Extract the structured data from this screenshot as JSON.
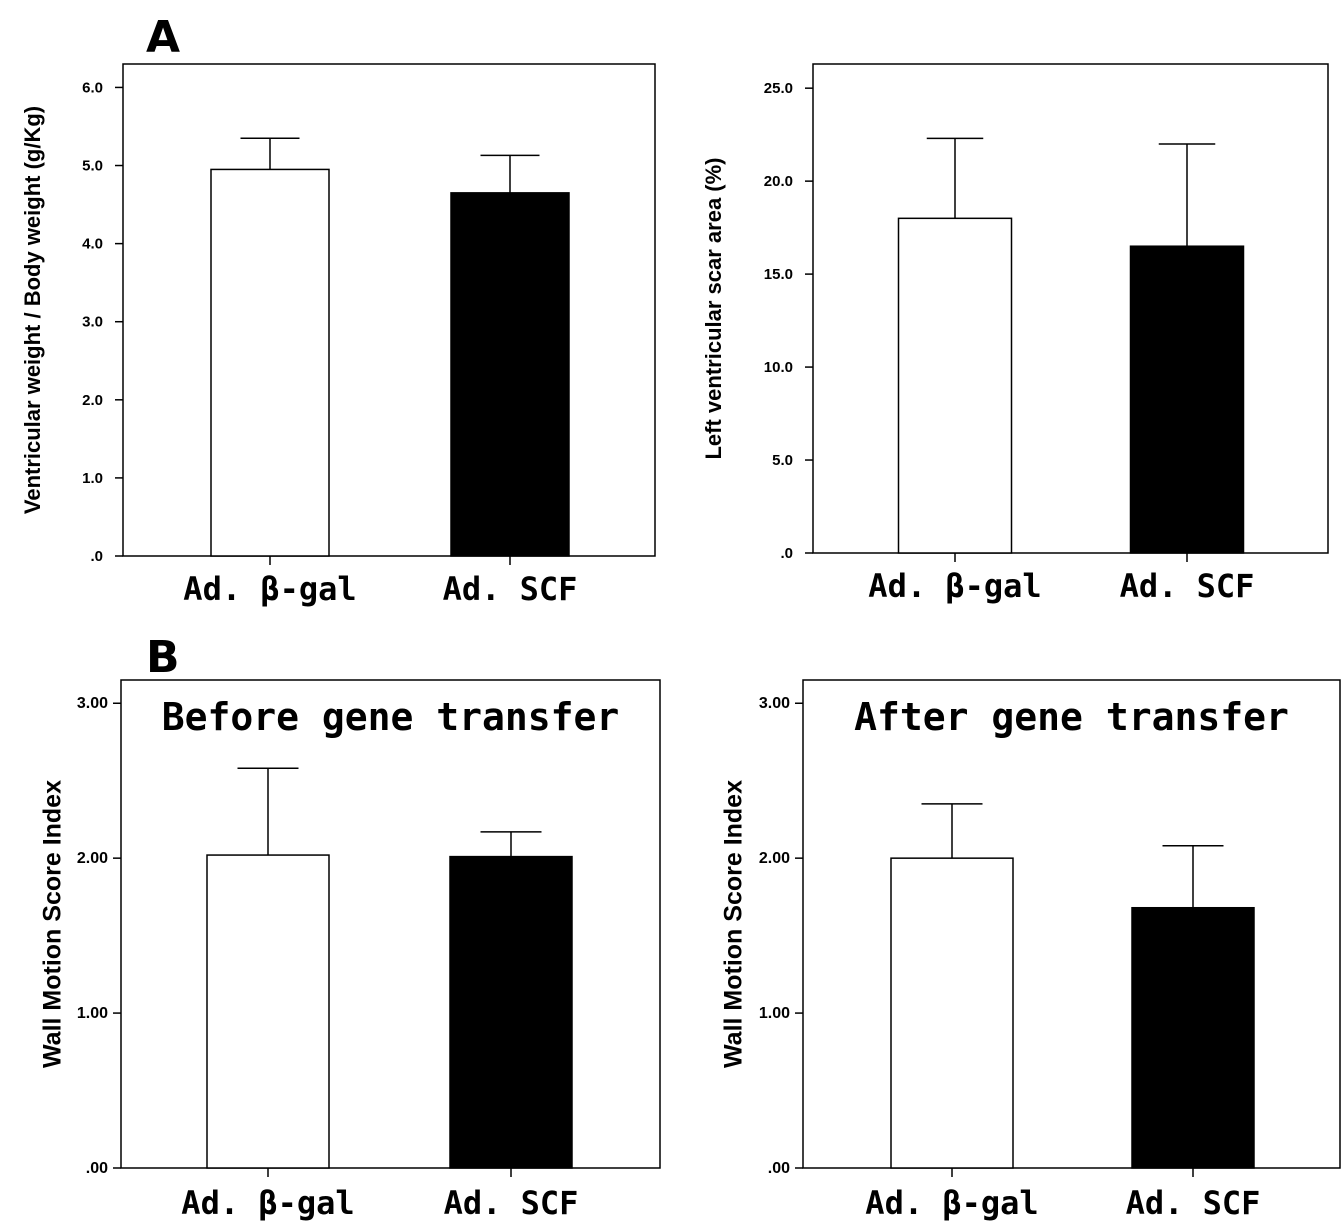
{
  "figure": {
    "panel_labels": [
      "A",
      "B"
    ]
  },
  "chart_data": [
    {
      "type": "bar",
      "panel": "A",
      "title": "",
      "ylabel": "Ventricular weight / Body weight (g/Kg)",
      "xlabel": "",
      "categories": [
        "Ad. β-gal",
        "Ad. SCF"
      ],
      "series": [
        {
          "values": [
            4.95,
            4.65
          ],
          "errors": [
            0.4,
            0.48
          ],
          "colors": [
            "#ffffff",
            "#000000"
          ]
        }
      ],
      "ylim": [
        0,
        6.3
      ],
      "yticks": [
        0,
        1,
        2,
        3,
        4,
        5,
        6
      ],
      "ytick_labels": [
        ".0",
        "1.0",
        "2.0",
        "3.0",
        "4.0",
        "5.0",
        "6.0"
      ],
      "grid": false
    },
    {
      "type": "bar",
      "panel": "A",
      "title": "",
      "ylabel": "Left ventricular scar area (%)",
      "xlabel": "",
      "categories": [
        "Ad. β-gal",
        "Ad. SCF"
      ],
      "series": [
        {
          "values": [
            18.0,
            16.5
          ],
          "errors": [
            4.3,
            5.5
          ],
          "colors": [
            "#ffffff",
            "#000000"
          ]
        }
      ],
      "ylim": [
        0,
        26.3
      ],
      "yticks": [
        0,
        5,
        10,
        15,
        20,
        25
      ],
      "ytick_labels": [
        ".0",
        "5.0",
        "10.0",
        "15.0",
        "20.0",
        "25.0"
      ],
      "grid": false
    },
    {
      "type": "bar",
      "panel": "B",
      "title": "Before gene transfer",
      "ylabel": "Wall Motion Score Index",
      "xlabel": "",
      "categories": [
        "Ad. β-gal",
        "Ad. SCF"
      ],
      "series": [
        {
          "values": [
            2.02,
            2.01
          ],
          "errors": [
            0.56,
            0.16
          ],
          "colors": [
            "#ffffff",
            "#000000"
          ]
        }
      ],
      "ylim": [
        0,
        3.15
      ],
      "yticks": [
        0,
        1,
        2,
        3
      ],
      "ytick_labels": [
        ".00",
        "1.00",
        "2.00",
        "3.00"
      ],
      "grid": false
    },
    {
      "type": "bar",
      "panel": "B",
      "title": "After gene transfer",
      "ylabel": "Wall Motion Score Index",
      "xlabel": "",
      "categories": [
        "Ad. β-gal",
        "Ad. SCF"
      ],
      "series": [
        {
          "values": [
            2.0,
            1.68
          ],
          "errors": [
            0.35,
            0.4
          ],
          "colors": [
            "#ffffff",
            "#000000"
          ]
        }
      ],
      "ylim": [
        0,
        3.15
      ],
      "yticks": [
        0,
        1,
        2,
        3
      ],
      "ytick_labels": [
        ".00",
        "1.00",
        "2.00",
        "3.00"
      ],
      "grid": false
    }
  ]
}
